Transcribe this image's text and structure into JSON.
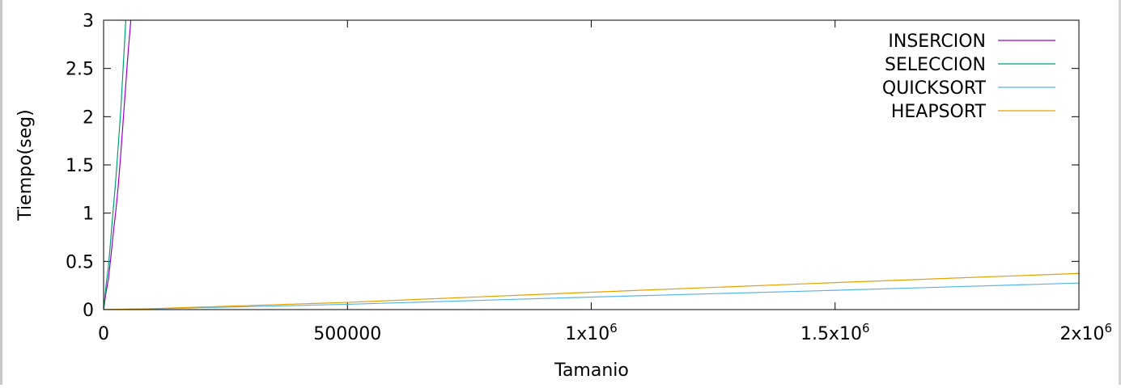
{
  "chart_data": {
    "type": "line",
    "title": "",
    "xlabel": "Tamanio",
    "ylabel": "Tiempo(seg)",
    "xlim": [
      0,
      2000000
    ],
    "ylim": [
      0,
      3
    ],
    "grid": false,
    "legend_position": "top-right",
    "x_ticks": [
      {
        "value": 0,
        "base": "0",
        "exp": ""
      },
      {
        "value": 500000,
        "base": "500000",
        "exp": ""
      },
      {
        "value": 1000000,
        "base": "1x10",
        "exp": "6"
      },
      {
        "value": 1500000,
        "base": "1.5x10",
        "exp": "6"
      },
      {
        "value": 2000000,
        "base": "2x10",
        "exp": "6"
      }
    ],
    "y_ticks": [
      {
        "value": 0,
        "label": "0"
      },
      {
        "value": 0.5,
        "label": "0.5"
      },
      {
        "value": 1,
        "label": "1"
      },
      {
        "value": 1.5,
        "label": "1.5"
      },
      {
        "value": 2,
        "label": "2"
      },
      {
        "value": 2.5,
        "label": "2.5"
      },
      {
        "value": 3,
        "label": "3"
      }
    ],
    "series": [
      {
        "name": "INSERCION",
        "color": "#9400d3",
        "x": [
          0,
          5000,
          10000,
          15000,
          20000,
          25000,
          30000,
          35000,
          40000,
          45000,
          50000,
          55000,
          60000
        ],
        "y": [
          0,
          0.18,
          0.32,
          0.55,
          0.8,
          1.02,
          1.28,
          1.6,
          1.95,
          2.3,
          2.65,
          2.95,
          3.3
        ]
      },
      {
        "name": "SELECCION",
        "color": "#009e73",
        "x": [
          0,
          5000,
          10000,
          15000,
          20000,
          25000,
          30000,
          35000,
          40000,
          45000,
          50000
        ],
        "y": [
          0,
          0.25,
          0.45,
          0.75,
          1.05,
          1.35,
          1.7,
          2.05,
          2.5,
          2.95,
          3.4
        ]
      },
      {
        "name": "QUICKSORT",
        "color": "#56b4e9",
        "x": [
          0,
          50000,
          100000,
          500000,
          1000000,
          1500000,
          2000000
        ],
        "y": [
          0,
          0.004,
          0.008,
          0.055,
          0.13,
          0.2,
          0.275
        ]
      },
      {
        "name": "HEAPSORT",
        "color": "#e69f00",
        "x": [
          0,
          50000,
          100000,
          500000,
          1000000,
          1500000,
          2000000
        ],
        "y": [
          0,
          0.005,
          0.01,
          0.075,
          0.18,
          0.28,
          0.375
        ]
      }
    ]
  }
}
